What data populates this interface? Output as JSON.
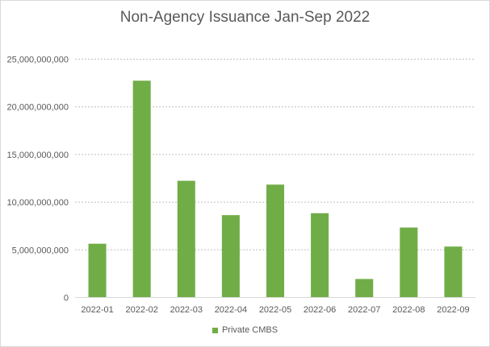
{
  "chart_data": {
    "type": "bar",
    "title": "Non-Agency Issuance Jan-Sep 2022",
    "xlabel": "",
    "ylabel": "",
    "categories": [
      "2022-01",
      "2022-02",
      "2022-03",
      "2022-04",
      "2022-05",
      "2022-06",
      "2022-07",
      "2022-08",
      "2022-09"
    ],
    "series": [
      {
        "name": "Private CMBS",
        "color": "#70ad47",
        "values": [
          5600000000,
          22700000000,
          12200000000,
          8600000000,
          11800000000,
          8800000000,
          1900000000,
          7300000000,
          5300000000
        ]
      }
    ],
    "ylim": [
      0,
      25000000000
    ],
    "yticks": [
      0,
      5000000000,
      10000000000,
      15000000000,
      20000000000,
      25000000000
    ],
    "ytick_labels": [
      "0",
      "5,000,000,000",
      "10,000,000,000",
      "15,000,000,000",
      "20,000,000,000",
      "25,000,000,000"
    ],
    "grid": true,
    "legend_position": "bottom"
  }
}
